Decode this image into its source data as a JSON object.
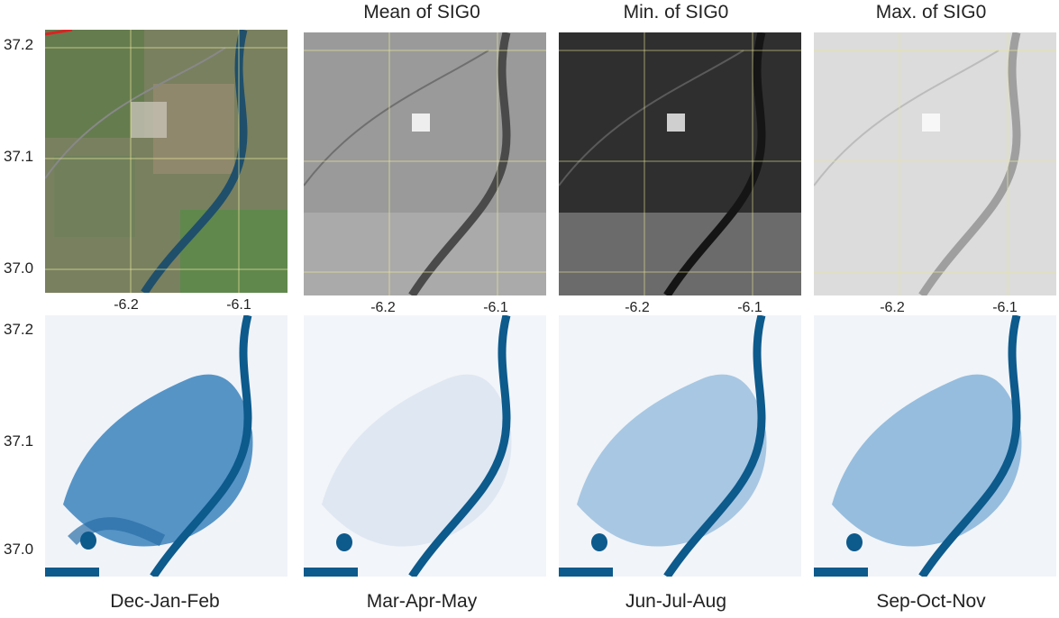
{
  "figure": {
    "top_titles": [
      "",
      "Mean of SIG0",
      "Min. of SIG0",
      "Max. of SIG0"
    ],
    "bottom_titles": [
      "Dec-Jan-Feb",
      "Mar-Apr-May",
      "Jun-Jul-Aug",
      "Sep-Oct-Nov"
    ],
    "y_ticks": [
      "37.2",
      "37.1",
      "37.0"
    ],
    "x_ticks": [
      "-6.2",
      "-6.1"
    ]
  },
  "panels": [
    {
      "row": 0,
      "col": 0,
      "kind": "optical"
    },
    {
      "row": 0,
      "col": 1,
      "kind": "sig0_mean"
    },
    {
      "row": 0,
      "col": 2,
      "kind": "sig0_min"
    },
    {
      "row": 0,
      "col": 3,
      "kind": "sig0_max"
    },
    {
      "row": 1,
      "col": 0,
      "kind": "season_blue_high"
    },
    {
      "row": 1,
      "col": 1,
      "kind": "season_blue_low"
    },
    {
      "row": 1,
      "col": 2,
      "kind": "season_blue_mid"
    },
    {
      "row": 1,
      "col": 3,
      "kind": "season_blue_mid2"
    }
  ],
  "colors": {
    "optical_bg": "#7a7d63",
    "mean_bg": "#9a9a9a",
    "min_bg": "#3a3a3a",
    "max_bg": "#d9d9d9",
    "blue_dark": "#0d5a8c",
    "blue_light": "#e8eef6",
    "grid": "#e8e59a"
  }
}
